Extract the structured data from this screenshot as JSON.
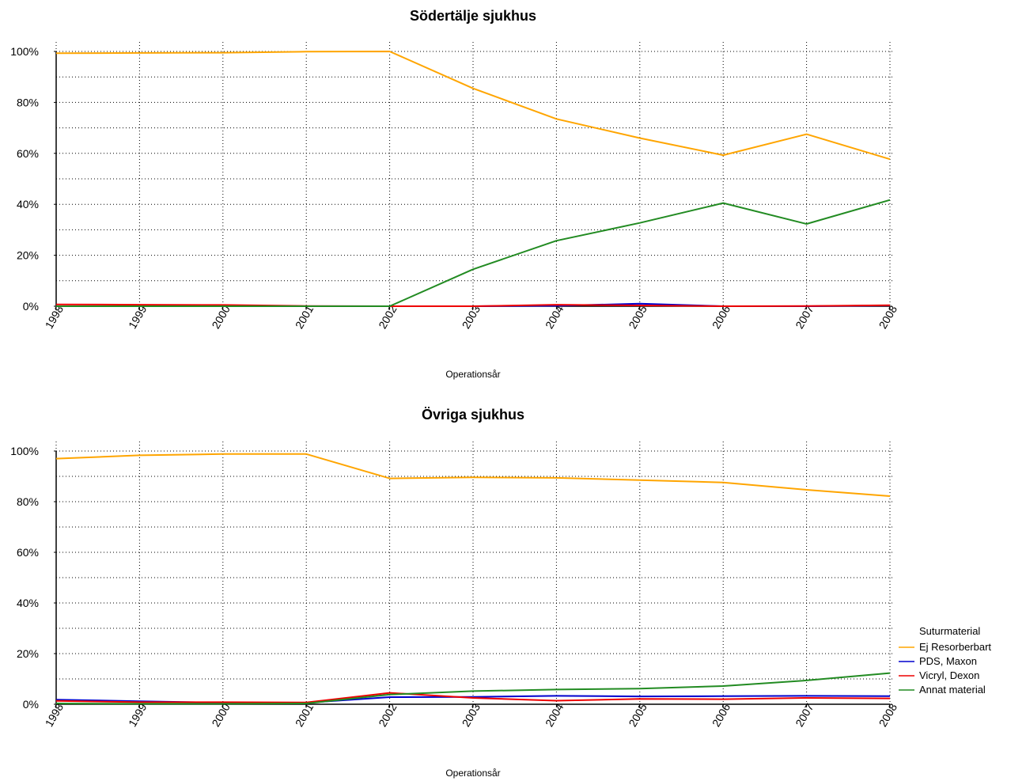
{
  "chart_data": [
    {
      "type": "line",
      "title": "Södertälje sjukhus",
      "xlabel": "Operationsår",
      "ylabel": "",
      "x": [
        1998,
        1999,
        2000,
        2001,
        2002,
        2003,
        2004,
        2005,
        2006,
        2007,
        2008
      ],
      "x_tick_labels": [
        "1998",
        "1999",
        "2000",
        "2001",
        "2002",
        "2003",
        "2004",
        "2005",
        "2006",
        "2007",
        "2008"
      ],
      "y_ticks": [
        0,
        20,
        40,
        60,
        80,
        100
      ],
      "y_tick_labels": [
        "0%",
        "20%",
        "40%",
        "60%",
        "80%",
        "100%"
      ],
      "ylim": [
        0,
        100
      ],
      "grid": true,
      "series": [
        {
          "name": "Ej Resorberbart",
          "color": "#FFA500",
          "values": [
            99.3,
            99.4,
            99.5,
            99.9,
            100.0,
            85.5,
            73.5,
            66.0,
            59.3,
            67.5,
            57.7
          ]
        },
        {
          "name": "PDS, Maxon",
          "color": "#0000CD",
          "values": [
            0.0,
            0.0,
            0.0,
            0.0,
            0.0,
            0.0,
            0.2,
            1.0,
            0.0,
            0.0,
            0.3
          ]
        },
        {
          "name": "Vicryl, Dexon",
          "color": "#EE0000",
          "values": [
            0.7,
            0.6,
            0.5,
            0.1,
            0.0,
            0.0,
            0.6,
            0.3,
            0.0,
            0.1,
            0.4
          ]
        },
        {
          "name": "Annat material",
          "color": "#228B22",
          "values": [
            0.0,
            0.0,
            0.0,
            0.0,
            0.0,
            14.5,
            25.7,
            32.7,
            40.5,
            32.3,
            41.7
          ]
        }
      ]
    },
    {
      "type": "line",
      "title": "Övriga sjukhus",
      "xlabel": "Operationsår",
      "ylabel": "",
      "x": [
        1998,
        1999,
        2000,
        2001,
        2002,
        2003,
        2004,
        2005,
        2006,
        2007,
        2008
      ],
      "x_tick_labels": [
        "1998",
        "1999",
        "2000",
        "2001",
        "2002",
        "2003",
        "2004",
        "2005",
        "2006",
        "2007",
        "2008"
      ],
      "y_ticks": [
        0,
        20,
        40,
        60,
        80,
        100
      ],
      "y_tick_labels": [
        "0%",
        "20%",
        "40%",
        "60%",
        "80%",
        "100%"
      ],
      "ylim": [
        0,
        100
      ],
      "grid": true,
      "legend_title": "Suturmaterial",
      "legend_position": "right",
      "series": [
        {
          "name": "Ej Resorberbart",
          "color": "#FFA500",
          "values": [
            97.0,
            98.3,
            98.8,
            98.8,
            89.2,
            89.6,
            89.4,
            88.5,
            87.6,
            84.7,
            82.2
          ]
        },
        {
          "name": "PDS, Maxon",
          "color": "#0000CD",
          "values": [
            1.8,
            1.2,
            0.6,
            0.6,
            2.8,
            2.9,
            3.3,
            3.1,
            3.2,
            3.3,
            3.2
          ]
        },
        {
          "name": "Vicryl, Dexon",
          "color": "#EE0000",
          "values": [
            1.3,
            0.8,
            0.8,
            0.7,
            4.5,
            2.5,
            1.4,
            2.1,
            2.0,
            2.5,
            2.3
          ]
        },
        {
          "name": "Annat material",
          "color": "#228B22",
          "values": [
            0.3,
            0.2,
            0.2,
            0.3,
            3.8,
            5.2,
            5.8,
            6.2,
            7.2,
            9.4,
            12.3
          ]
        }
      ]
    }
  ]
}
